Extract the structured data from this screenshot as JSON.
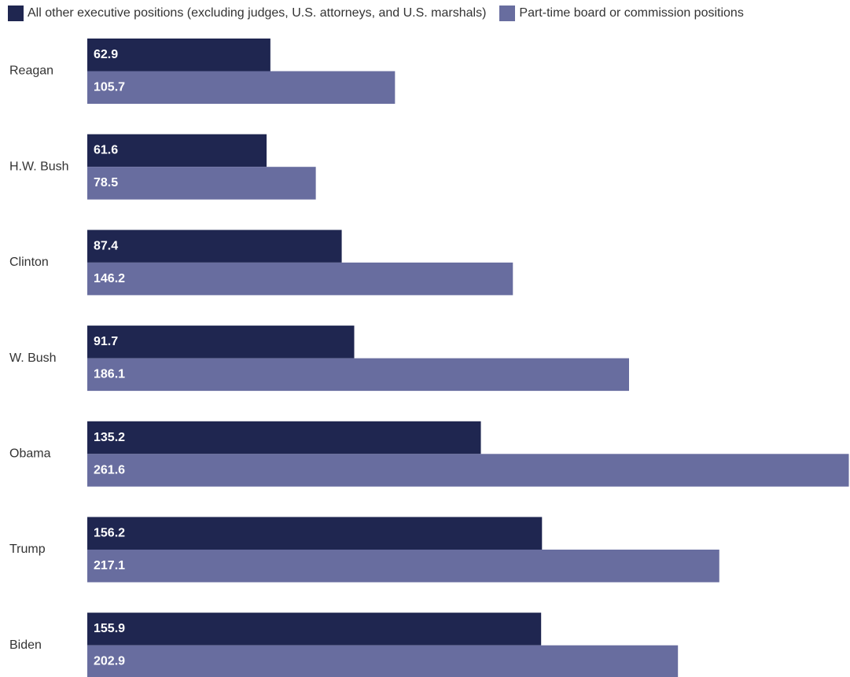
{
  "chart_data": {
    "type": "bar",
    "orientation": "horizontal",
    "categories": [
      "Reagan",
      "H.W. Bush",
      "Clinton",
      "W. Bush",
      "Obama",
      "Trump",
      "Biden"
    ],
    "series": [
      {
        "name": "All other executive positions (excluding judges, U.S. attorneys, and U.S. marshals)",
        "color": "#1f2650",
        "values": [
          62.9,
          61.6,
          87.4,
          91.7,
          135.2,
          156.2,
          155.9
        ]
      },
      {
        "name": "Part-time board or commission positions",
        "color": "#686d9f",
        "values": [
          105.7,
          78.5,
          146.2,
          186.1,
          261.6,
          217.1,
          202.9
        ]
      }
    ],
    "value_labels": true,
    "legend_position": "top-left",
    "grid": false,
    "xlim": [
      0,
      262
    ]
  }
}
